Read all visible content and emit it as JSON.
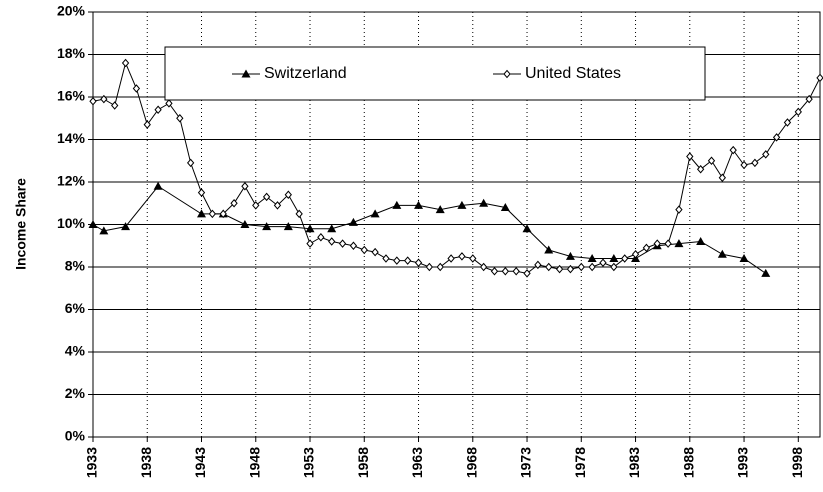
{
  "chart_data": {
    "type": "line",
    "y_label": "Income Share",
    "xlim": [
      1933,
      2000
    ],
    "xticks": [
      1933,
      1938,
      1943,
      1948,
      1953,
      1958,
      1963,
      1968,
      1973,
      1978,
      1983,
      1988,
      1993,
      1998
    ],
    "ylim": [
      0,
      20
    ],
    "yticks": [
      {
        "value": 0,
        "label": "0%"
      },
      {
        "value": 2,
        "label": "2%"
      },
      {
        "value": 4,
        "label": "4%"
      },
      {
        "value": 6,
        "label": "6%"
      },
      {
        "value": 8,
        "label": "8%"
      },
      {
        "value": 10,
        "label": "10%"
      },
      {
        "value": 12,
        "label": "12%"
      },
      {
        "value": 14,
        "label": "14%"
      },
      {
        "value": 16,
        "label": "16%"
      },
      {
        "value": 18,
        "label": "18%"
      },
      {
        "value": 20,
        "label": "20%"
      }
    ],
    "grid": true,
    "series": [
      {
        "name": "Switzerland",
        "color": "#000000",
        "marker": "triangle",
        "x": [
          1933,
          1934,
          1936,
          1939,
          1943,
          1945,
          1947,
          1949,
          1951,
          1953,
          1955,
          1957,
          1959,
          1961,
          1963,
          1965,
          1967,
          1969,
          1971,
          1973,
          1975,
          1977,
          1979,
          1981,
          1983,
          1985,
          1987,
          1989,
          1991,
          1993,
          1995
        ],
        "values": [
          10.0,
          9.7,
          9.9,
          11.8,
          10.5,
          10.5,
          10.0,
          9.9,
          9.9,
          9.8,
          9.8,
          10.1,
          10.5,
          10.9,
          10.9,
          10.7,
          10.9,
          11.0,
          10.8,
          9.8,
          8.8,
          8.5,
          8.4,
          8.4,
          8.4,
          9.0,
          9.1,
          9.2,
          8.6,
          8.4,
          7.7
        ]
      },
      {
        "name": "United States",
        "color": "#000000",
        "marker": "diamond",
        "x": [
          1933,
          1934,
          1935,
          1936,
          1937,
          1938,
          1939,
          1940,
          1941,
          1942,
          1943,
          1944,
          1945,
          1946,
          1947,
          1948,
          1949,
          1950,
          1951,
          1952,
          1953,
          1954,
          1955,
          1956,
          1957,
          1958,
          1959,
          1960,
          1961,
          1962,
          1963,
          1964,
          1965,
          1966,
          1967,
          1968,
          1969,
          1970,
          1971,
          1972,
          1973,
          1974,
          1975,
          1976,
          1977,
          1978,
          1979,
          1980,
          1981,
          1982,
          1983,
          1984,
          1985,
          1986,
          1987,
          1988,
          1989,
          1990,
          1991,
          1992,
          1993,
          1994,
          1995,
          1996,
          1997,
          1998,
          1999,
          2000
        ],
        "values": [
          15.8,
          15.9,
          15.6,
          17.6,
          16.4,
          14.7,
          15.4,
          15.7,
          15.0,
          12.9,
          11.5,
          10.5,
          10.5,
          11.0,
          11.8,
          10.9,
          11.3,
          10.9,
          11.4,
          10.5,
          9.1,
          9.4,
          9.2,
          9.1,
          9.0,
          8.8,
          8.7,
          8.4,
          8.3,
          8.3,
          8.2,
          8.0,
          8.0,
          8.4,
          8.5,
          8.4,
          8.0,
          7.8,
          7.8,
          7.8,
          7.7,
          8.1,
          8.0,
          7.9,
          7.9,
          8.0,
          8.0,
          8.2,
          8.0,
          8.4,
          8.6,
          8.9,
          9.1,
          9.1,
          10.7,
          13.2,
          12.6,
          13.0,
          12.2,
          13.5,
          12.8,
          12.9,
          13.3,
          14.1,
          14.8,
          15.3,
          15.9,
          16.9
        ]
      }
    ]
  }
}
